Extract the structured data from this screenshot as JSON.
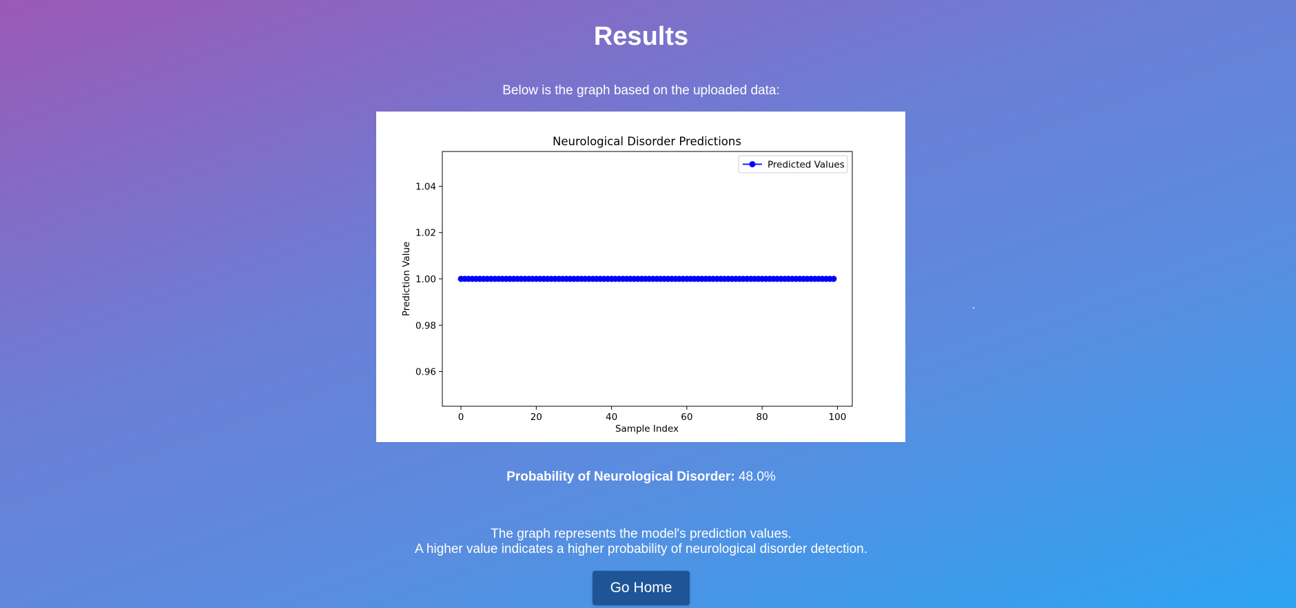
{
  "page": {
    "title": "Results",
    "intro": "Below is the graph based on the uploaded data:",
    "probability_label": "Probability of Neurological Disorder:",
    "probability_value": "48.0%",
    "explanation_line1": "The graph represents the model's prediction values.",
    "explanation_line2": "A higher value indicates a higher probability of neurological disorder detection.",
    "home_button": "Go Home"
  },
  "colors": {
    "series": "#0000ff",
    "button": "#1e5597"
  },
  "chart_data": {
    "type": "line",
    "title": "Neurological Disorder Predictions",
    "xlabel": "Sample Index",
    "ylabel": "Prediction Value",
    "xlim": [
      -4.95,
      103.95
    ],
    "ylim": [
      0.945,
      1.055
    ],
    "xticks": [
      0,
      20,
      40,
      60,
      80,
      100
    ],
    "xtick_labels": [
      "0",
      "20",
      "40",
      "60",
      "80",
      "100"
    ],
    "yticks": [
      0.96,
      0.98,
      1.0,
      1.02,
      1.04
    ],
    "ytick_labels": [
      "0.96",
      "0.98",
      "1.00",
      "1.02",
      "1.04"
    ],
    "legend": "top-right",
    "grid": false,
    "series": [
      {
        "name": "Predicted Values",
        "marker": "circle",
        "x": [
          0,
          1,
          2,
          3,
          4,
          5,
          6,
          7,
          8,
          9,
          10,
          11,
          12,
          13,
          14,
          15,
          16,
          17,
          18,
          19,
          20,
          21,
          22,
          23,
          24,
          25,
          26,
          27,
          28,
          29,
          30,
          31,
          32,
          33,
          34,
          35,
          36,
          37,
          38,
          39,
          40,
          41,
          42,
          43,
          44,
          45,
          46,
          47,
          48,
          49,
          50,
          51,
          52,
          53,
          54,
          55,
          56,
          57,
          58,
          59,
          60,
          61,
          62,
          63,
          64,
          65,
          66,
          67,
          68,
          69,
          70,
          71,
          72,
          73,
          74,
          75,
          76,
          77,
          78,
          79,
          80,
          81,
          82,
          83,
          84,
          85,
          86,
          87,
          88,
          89,
          90,
          91,
          92,
          93,
          94,
          95,
          96,
          97,
          98,
          99
        ],
        "y": [
          1,
          1,
          1,
          1,
          1,
          1,
          1,
          1,
          1,
          1,
          1,
          1,
          1,
          1,
          1,
          1,
          1,
          1,
          1,
          1,
          1,
          1,
          1,
          1,
          1,
          1,
          1,
          1,
          1,
          1,
          1,
          1,
          1,
          1,
          1,
          1,
          1,
          1,
          1,
          1,
          1,
          1,
          1,
          1,
          1,
          1,
          1,
          1,
          1,
          1,
          1,
          1,
          1,
          1,
          1,
          1,
          1,
          1,
          1,
          1,
          1,
          1,
          1,
          1,
          1,
          1,
          1,
          1,
          1,
          1,
          1,
          1,
          1,
          1,
          1,
          1,
          1,
          1,
          1,
          1,
          1,
          1,
          1,
          1,
          1,
          1,
          1,
          1,
          1,
          1,
          1,
          1,
          1,
          1,
          1,
          1,
          1,
          1,
          1,
          1
        ]
      }
    ]
  }
}
